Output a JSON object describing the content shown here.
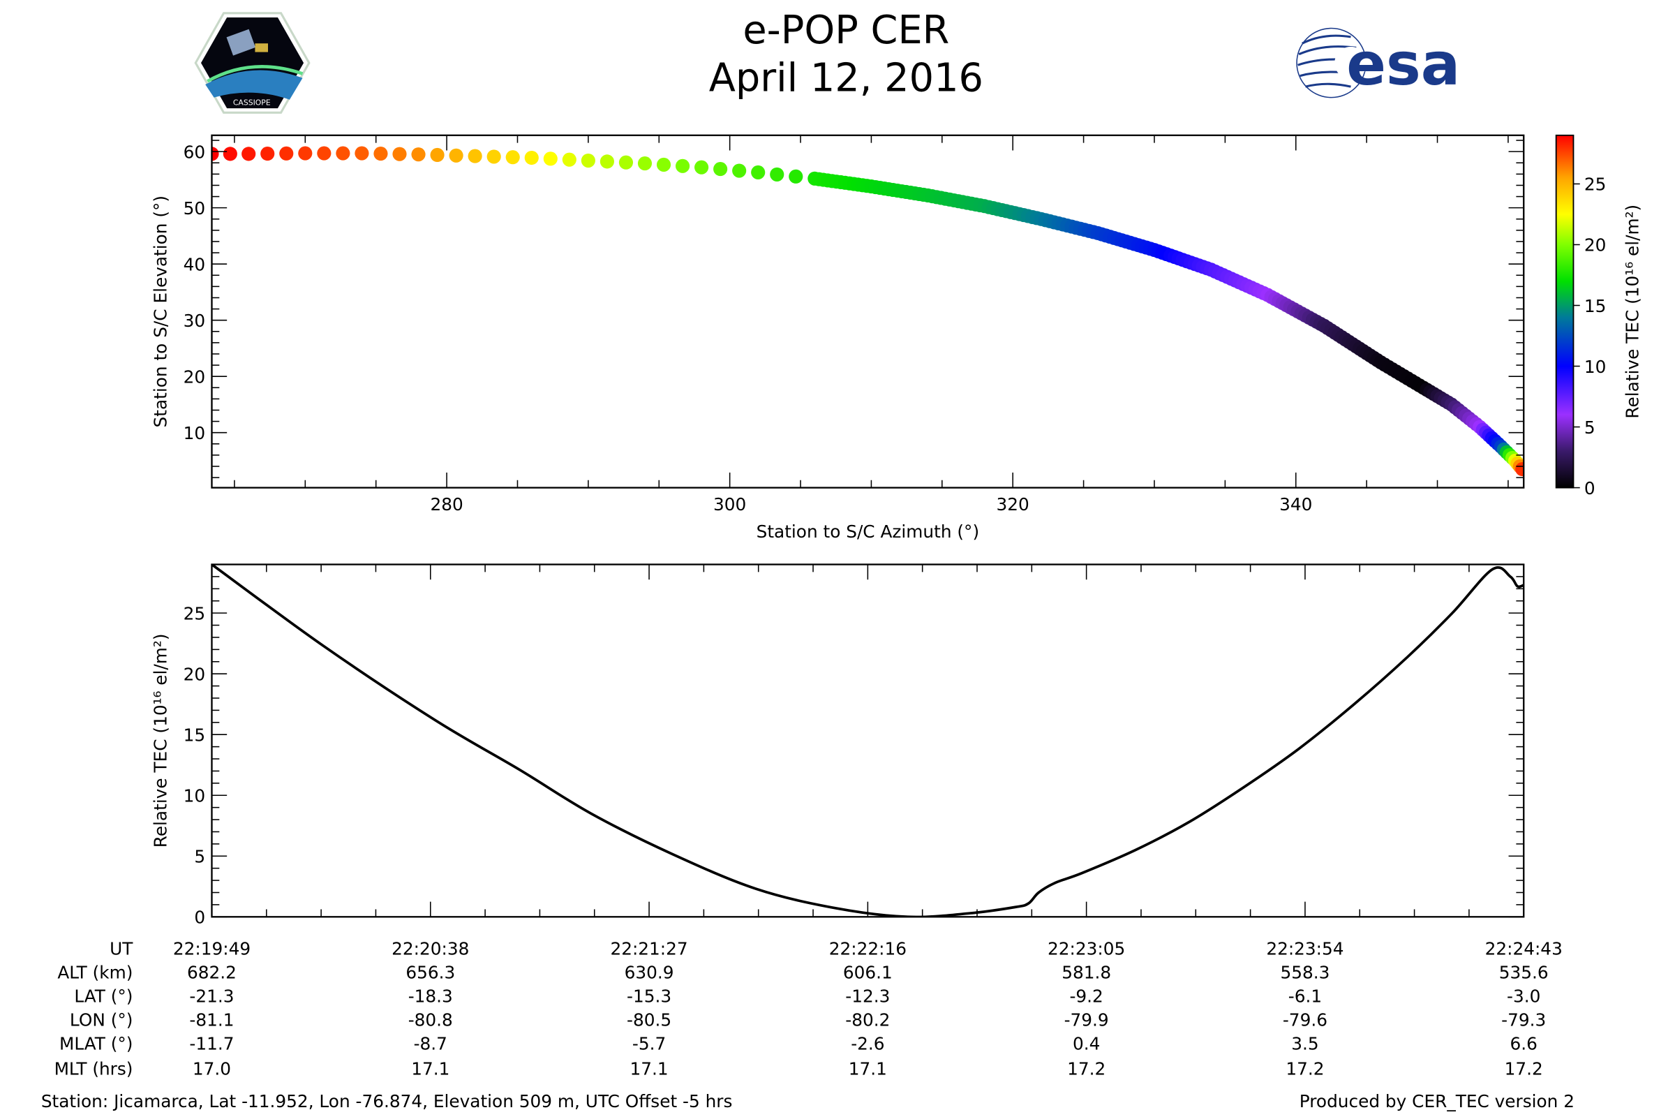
{
  "header": {
    "title": "e-POP CER",
    "date": "April 12, 2016",
    "left_logo_text": "CASSIOPE",
    "right_logo_text": "esa"
  },
  "chart_data": [
    {
      "type": "scatter",
      "xlabel": "Station to S/C Azimuth (°)",
      "ylabel": "Station to S/C Elevation (°)",
      "xlim": [
        263.4,
        356.1
      ],
      "ylim": [
        0.2,
        62.9
      ],
      "xticks": [
        "280",
        "300",
        "320",
        "340"
      ],
      "xtick_values": [
        280,
        300,
        320,
        340
      ],
      "yticks": [
        "10",
        "20",
        "30",
        "40",
        "50",
        "60"
      ],
      "ytick_values": [
        10,
        20,
        30,
        40,
        50,
        60
      ],
      "points": [
        [
          263.4,
          59.6,
          29
        ],
        [
          266,
          59.6,
          28.5
        ],
        [
          270,
          59.7,
          27.8
        ],
        [
          274,
          59.7,
          27
        ],
        [
          278,
          59.5,
          26
        ],
        [
          282,
          59.2,
          24.5
        ],
        [
          286,
          58.9,
          23
        ],
        [
          290,
          58.4,
          21.5
        ],
        [
          294,
          57.9,
          20.5
        ],
        [
          298,
          57.2,
          19.5
        ],
        [
          302,
          56.3,
          18.5
        ],
        [
          306,
          55.2,
          17.5
        ],
        [
          310,
          53.8,
          16.8
        ],
        [
          314,
          52.2,
          16.2
        ],
        [
          318,
          50.3,
          15.5
        ],
        [
          322,
          48,
          14
        ],
        [
          326,
          45.5,
          12
        ],
        [
          330,
          42.5,
          10.5
        ],
        [
          334,
          39,
          8
        ],
        [
          338,
          34.5,
          6
        ],
        [
          342,
          29,
          2.5
        ],
        [
          346,
          22.5,
          0.5
        ],
        [
          349,
          18,
          0.2
        ],
        [
          351,
          15,
          3
        ],
        [
          353,
          11,
          6
        ],
        [
          354.5,
          7.5,
          12
        ],
        [
          355.5,
          5,
          22
        ],
        [
          356,
          3.5,
          28
        ]
      ],
      "point_fields": [
        "azimuth",
        "elevation",
        "relative_tec"
      ],
      "colorbar": {
        "label": "Relative TEC (10¹⁶ el/m²)",
        "range": [
          0,
          29
        ],
        "ticks": [
          "0",
          "5",
          "10",
          "15",
          "20",
          "25"
        ],
        "tick_values": [
          0,
          5,
          10,
          15,
          20,
          25
        ],
        "stops": [
          [
            0,
            "#000000"
          ],
          [
            3,
            "#3a1a6a"
          ],
          [
            6,
            "#9b30ff"
          ],
          [
            10,
            "#0000ff"
          ],
          [
            14,
            "#007a9a"
          ],
          [
            17,
            "#00e000"
          ],
          [
            20,
            "#80ff00"
          ],
          [
            22.5,
            "#ffff00"
          ],
          [
            25.5,
            "#ffa500"
          ],
          [
            29,
            "#ff0000"
          ]
        ]
      }
    },
    {
      "type": "line",
      "xlabel": "",
      "ylabel": "Relative TEC (10¹⁶ el/m²)",
      "xlim_seconds": [
        0,
        294
      ],
      "ylim": [
        0,
        29
      ],
      "yticks": [
        "0",
        "5",
        "10",
        "15",
        "20",
        "25"
      ],
      "ytick_values": [
        0,
        5,
        10,
        15,
        20,
        25
      ],
      "x_seconds": [
        0,
        25,
        50,
        69,
        85,
        103,
        122,
        140,
        156,
        170,
        180,
        183,
        185.3,
        189,
        195,
        207,
        219,
        231,
        243.5,
        256,
        268,
        278,
        287,
        291,
        292.6,
        294
      ],
      "tec": [
        29,
        22.3,
        16.2,
        12.1,
        8.5,
        5.2,
        2.3,
        0.7,
        0,
        0.3,
        0.8,
        1.1,
        2.0,
        2.8,
        3.6,
        5.5,
        7.8,
        10.6,
        13.8,
        17.5,
        21.4,
        25.0,
        28.6,
        28.0,
        27.2,
        27.3
      ]
    }
  ],
  "table": {
    "row_labels": [
      "UT",
      "ALT (km)",
      "LAT (°)",
      "LON (°)",
      "MLAT (°)",
      "MLT (hrs)"
    ],
    "columns": [
      [
        "22:19:49",
        "682.2",
        "-21.3",
        "-81.1",
        "-11.7",
        "17.0"
      ],
      [
        "22:20:38",
        "656.3",
        "-18.3",
        "-80.8",
        "-8.7",
        "17.1"
      ],
      [
        "22:21:27",
        "630.9",
        "-15.3",
        "-80.5",
        "-5.7",
        "17.1"
      ],
      [
        "22:22:16",
        "606.1",
        "-12.3",
        "-80.2",
        "-2.6",
        "17.1"
      ],
      [
        "22:23:05",
        "581.8",
        "-9.2",
        "-79.9",
        "0.4",
        "17.2"
      ],
      [
        "22:23:54",
        "558.3",
        "-6.1",
        "-79.6",
        "3.5",
        "17.2"
      ],
      [
        "22:24:43",
        "535.6",
        "-3.0",
        "-79.3",
        "6.6",
        "17.2"
      ]
    ]
  },
  "footer": {
    "station": "Station: Jicamarca, Lat -11.952, Lon -76.874, Elevation 509 m, UTC Offset -5 hrs",
    "produced": "Produced by CER_TEC version 2"
  }
}
